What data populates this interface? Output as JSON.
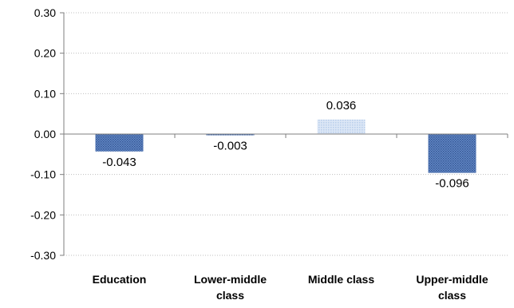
{
  "chart_data": {
    "type": "bar",
    "title": "",
    "xlabel": "",
    "ylabel": "",
    "categories": [
      [
        "Education"
      ],
      [
        "Lower-middle",
        "class"
      ],
      [
        "Middle class"
      ],
      [
        "Upper-middle",
        "class"
      ]
    ],
    "values": [
      -0.043,
      -0.003,
      0.036,
      -0.096
    ],
    "data_labels": [
      "-0.043",
      "-0.003",
      "0.036",
      "-0.096"
    ],
    "ylim": [
      -0.3,
      0.3
    ],
    "yticks": [
      0.3,
      0.2,
      0.1,
      0.0,
      -0.1,
      -0.2,
      -0.3
    ],
    "ytick_labels": [
      "0.30",
      "0.20",
      "0.10",
      "0.00",
      "-0.10",
      "-0.20",
      "-0.30"
    ],
    "grid": true,
    "legend": false,
    "colors": {
      "dark_bar": "#4a6ea8",
      "light_bar": "#c9daf1",
      "axis": "#7f7f7f",
      "grid": "#bfbfbf"
    }
  }
}
